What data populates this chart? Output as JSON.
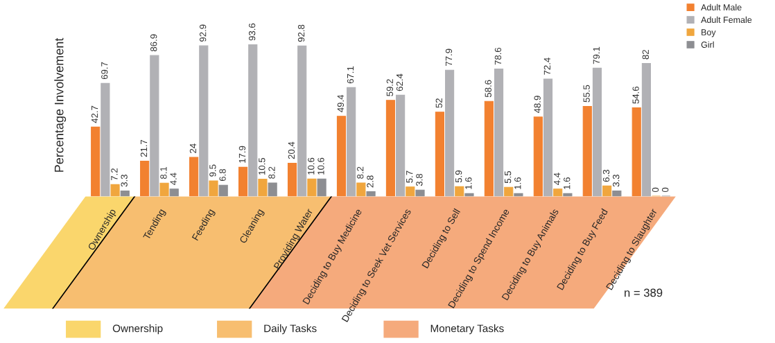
{
  "chart_data": {
    "type": "bar",
    "ylabel": "Percentage Involvement",
    "categories": [
      "Ownership",
      "Tending",
      "Feeding",
      "Cleaning",
      "Providing Water",
      "Deciding to Buy Medicine",
      "Deciding to Seek Vet Services",
      "Deciding to Sell",
      "Deciding to Spend Income",
      "Deciding to Buy Animals",
      "Deciding to Buy Feed",
      "Deciding to Slaughter"
    ],
    "series": [
      {
        "name": "Adult Male",
        "color": "#f28130",
        "values": [
          42.7,
          21.7,
          24,
          17.9,
          20.4,
          49.4,
          59.2,
          52,
          58.6,
          48.9,
          55.5,
          54.6
        ]
      },
      {
        "name": "Adult Female",
        "color": "#b1b1b5",
        "values": [
          69.7,
          86.9,
          92.9,
          93.6,
          92.8,
          67.1,
          62.4,
          77.9,
          78.6,
          72.4,
          79.1,
          82
        ]
      },
      {
        "name": "Boy",
        "color": "#f0a63e",
        "values": [
          7.2,
          8.1,
          9.5,
          10.5,
          10.6,
          8.2,
          5.7,
          5.9,
          5.5,
          4.4,
          6.3,
          0
        ]
      },
      {
        "name": "Girl",
        "color": "#8d8e92",
        "values": [
          3.3,
          4.4,
          6.8,
          8.2,
          10.6,
          2.8,
          3.8,
          1.6,
          1.6,
          1.6,
          3.3,
          0
        ]
      }
    ],
    "data_labels": true,
    "legend": "top right",
    "grid": false,
    "annotations": [
      "n = 389",
      "Ownership",
      "Daily Tasks",
      "Monetary Tasks"
    ]
  }
}
